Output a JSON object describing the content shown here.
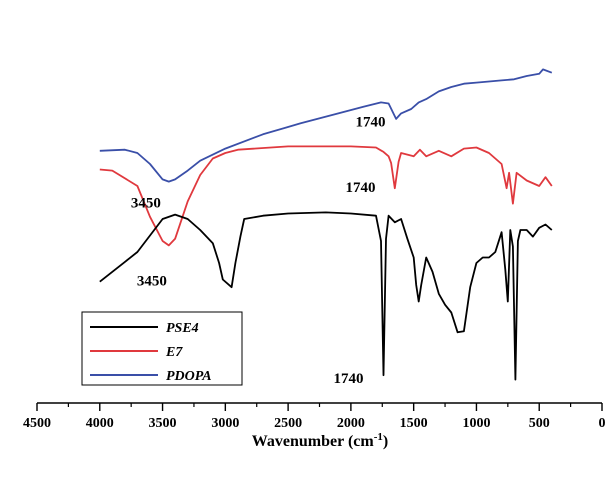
{
  "chart_data": {
    "type": "line",
    "title": "",
    "xlabel": "Wavenumber (cm",
    "xlabel_sup": "-1",
    "xlabel_end": ")",
    "ylabel": "",
    "xlim": [
      4500,
      0
    ],
    "x_reversed": true,
    "x_ticks": [
      4500,
      4000,
      3500,
      3000,
      2500,
      2000,
      1500,
      1000,
      500,
      0
    ],
    "grid": false,
    "legend_position": "bottom-left",
    "y_axis_shown": false,
    "series": [
      {
        "name": "PDOPA",
        "color": "#3a4fa8",
        "points": [
          [
            4000,
            0.92
          ],
          [
            3800,
            0.93
          ],
          [
            3700,
            0.9
          ],
          [
            3600,
            0.8
          ],
          [
            3500,
            0.66
          ],
          [
            3450,
            0.64
          ],
          [
            3400,
            0.66
          ],
          [
            3300,
            0.74
          ],
          [
            3200,
            0.83
          ],
          [
            3000,
            0.94
          ],
          [
            2700,
            1.07
          ],
          [
            2400,
            1.17
          ],
          [
            2100,
            1.26
          ],
          [
            1900,
            1.32
          ],
          [
            1760,
            1.36
          ],
          [
            1700,
            1.35
          ],
          [
            1640,
            1.21
          ],
          [
            1600,
            1.26
          ],
          [
            1520,
            1.3
          ],
          [
            1460,
            1.36
          ],
          [
            1400,
            1.39
          ],
          [
            1300,
            1.46
          ],
          [
            1200,
            1.5
          ],
          [
            1100,
            1.53
          ],
          [
            1000,
            1.54
          ],
          [
            900,
            1.55
          ],
          [
            800,
            1.56
          ],
          [
            700,
            1.57
          ],
          [
            600,
            1.6
          ],
          [
            500,
            1.62
          ],
          [
            470,
            1.66
          ],
          [
            400,
            1.63
          ]
        ]
      },
      {
        "name": "E7",
        "color": "#e0393e",
        "points": [
          [
            4000,
            0.75
          ],
          [
            3900,
            0.74
          ],
          [
            3700,
            0.6
          ],
          [
            3600,
            0.32
          ],
          [
            3500,
            0.1
          ],
          [
            3450,
            0.06
          ],
          [
            3400,
            0.12
          ],
          [
            3300,
            0.46
          ],
          [
            3200,
            0.7
          ],
          [
            3100,
            0.85
          ],
          [
            3000,
            0.9
          ],
          [
            2900,
            0.93
          ],
          [
            2500,
            0.96
          ],
          [
            2000,
            0.96
          ],
          [
            1800,
            0.95
          ],
          [
            1740,
            0.91
          ],
          [
            1700,
            0.87
          ],
          [
            1680,
            0.81
          ],
          [
            1650,
            0.58
          ],
          [
            1620,
            0.82
          ],
          [
            1600,
            0.9
          ],
          [
            1500,
            0.87
          ],
          [
            1450,
            0.93
          ],
          [
            1400,
            0.87
          ],
          [
            1300,
            0.92
          ],
          [
            1200,
            0.87
          ],
          [
            1100,
            0.94
          ],
          [
            1000,
            0.95
          ],
          [
            900,
            0.9
          ],
          [
            800,
            0.8
          ],
          [
            760,
            0.58
          ],
          [
            740,
            0.72
          ],
          [
            710,
            0.44
          ],
          [
            680,
            0.72
          ],
          [
            600,
            0.65
          ],
          [
            500,
            0.6
          ],
          [
            450,
            0.68
          ],
          [
            400,
            0.6
          ]
        ]
      },
      {
        "name": "PSE4",
        "color": "#000000",
        "points": [
          [
            4000,
            -0.27
          ],
          [
            3800,
            -0.09
          ],
          [
            3700,
            0.0
          ],
          [
            3600,
            0.15
          ],
          [
            3500,
            0.3
          ],
          [
            3400,
            0.34
          ],
          [
            3300,
            0.3
          ],
          [
            3200,
            0.2
          ],
          [
            3100,
            0.08
          ],
          [
            3050,
            -0.1
          ],
          [
            3020,
            -0.25
          ],
          [
            2950,
            -0.32
          ],
          [
            2920,
            -0.1
          ],
          [
            2880,
            0.14
          ],
          [
            2850,
            0.3
          ],
          [
            2700,
            0.33
          ],
          [
            2500,
            0.35
          ],
          [
            2200,
            0.36
          ],
          [
            2000,
            0.35
          ],
          [
            1800,
            0.33
          ],
          [
            1760,
            0.1
          ],
          [
            1740,
            -1.12
          ],
          [
            1720,
            0.12
          ],
          [
            1700,
            0.33
          ],
          [
            1650,
            0.27
          ],
          [
            1600,
            0.3
          ],
          [
            1550,
            0.12
          ],
          [
            1500,
            -0.05
          ],
          [
            1480,
            -0.3
          ],
          [
            1460,
            -0.45
          ],
          [
            1440,
            -0.3
          ],
          [
            1400,
            -0.05
          ],
          [
            1350,
            -0.18
          ],
          [
            1300,
            -0.38
          ],
          [
            1250,
            -0.48
          ],
          [
            1200,
            -0.55
          ],
          [
            1150,
            -0.73
          ],
          [
            1100,
            -0.72
          ],
          [
            1050,
            -0.32
          ],
          [
            1000,
            -0.1
          ],
          [
            950,
            -0.05
          ],
          [
            900,
            -0.05
          ],
          [
            850,
            0.0
          ],
          [
            800,
            0.18
          ],
          [
            770,
            -0.16
          ],
          [
            750,
            -0.45
          ],
          [
            730,
            0.2
          ],
          [
            710,
            0.05
          ],
          [
            690,
            -1.16
          ],
          [
            670,
            0.1
          ],
          [
            650,
            0.2
          ],
          [
            600,
            0.2
          ],
          [
            550,
            0.14
          ],
          [
            500,
            0.22
          ],
          [
            450,
            0.25
          ],
          [
            400,
            0.2
          ]
        ]
      }
    ],
    "annotations": [
      {
        "text": "1740",
        "series": "PDOPA",
        "anchor": [
          1740,
          1.36
        ]
      },
      {
        "text": "3450",
        "series": "PDOPA",
        "anchor": [
          3450,
          0.64
        ]
      },
      {
        "text": "1740",
        "series": "E7",
        "anchor": [
          1740,
          0.91
        ]
      },
      {
        "text": "3450",
        "series": "E7",
        "anchor": [
          3450,
          0.06
        ]
      },
      {
        "text": "1740",
        "series": "PSE4",
        "anchor": [
          1740,
          -1.12
        ]
      }
    ]
  }
}
